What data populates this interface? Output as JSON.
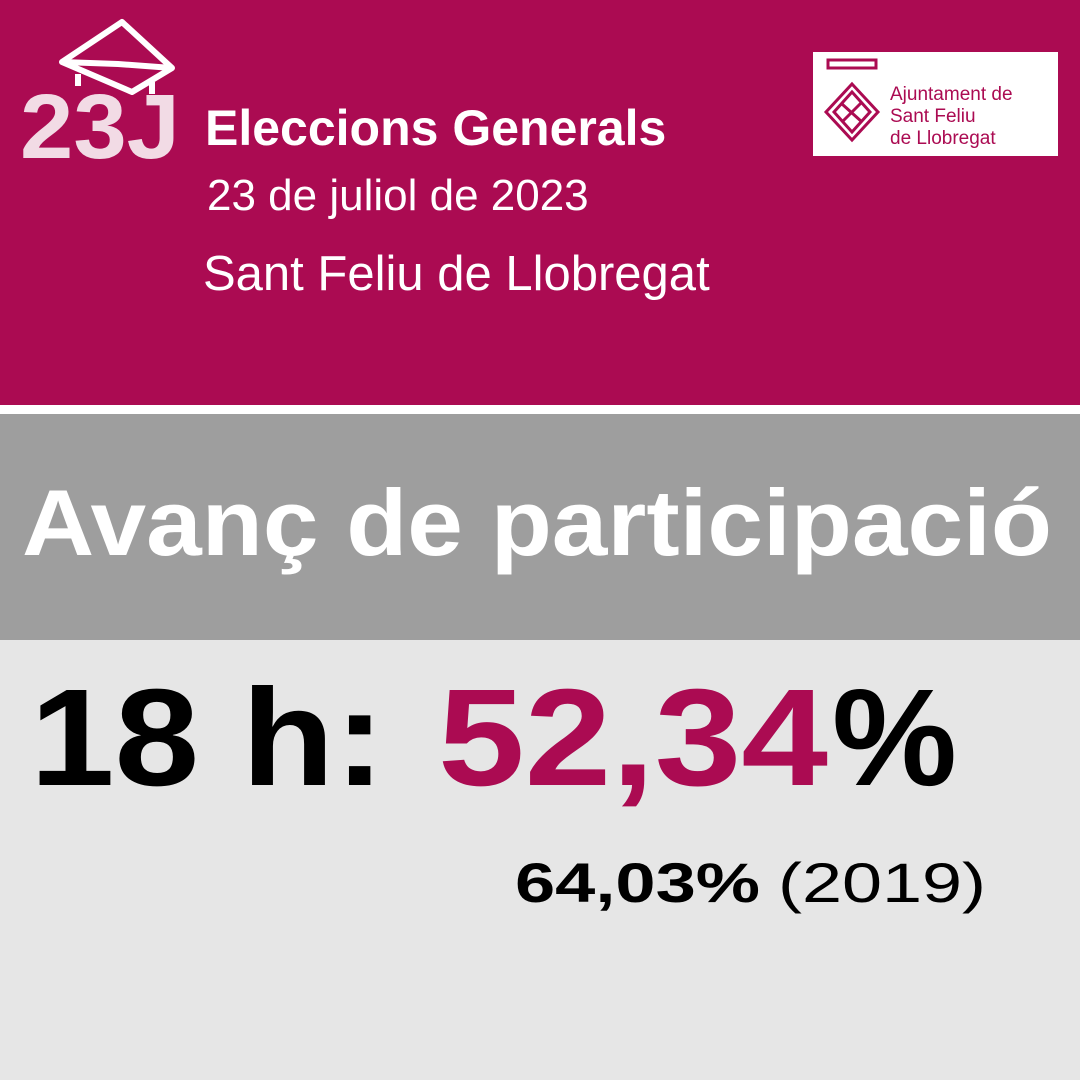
{
  "logo": {
    "text": "23J"
  },
  "header": {
    "title": "Eleccions Generals",
    "date": "23 de juliol de 2023",
    "place": "Sant Feliu de Llobregat"
  },
  "institution": {
    "lines": [
      "Ajuntament de",
      "Sant Feliu",
      "de Llobregat"
    ]
  },
  "banner": {
    "title": "Avanç de participació"
  },
  "result": {
    "time": "18 h:",
    "value": "52,34",
    "percent_sign": "%",
    "previous": "64,03%",
    "previous_year": "(2019)"
  }
}
